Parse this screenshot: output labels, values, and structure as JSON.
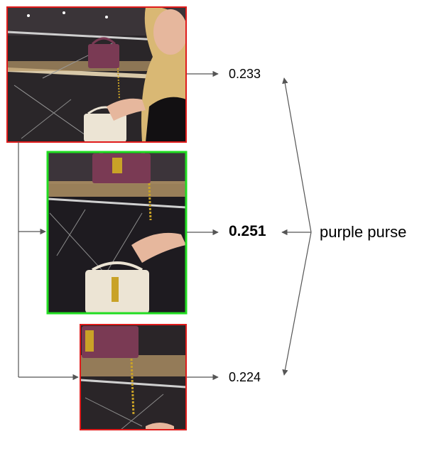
{
  "query_text": "purple purse",
  "crops": [
    {
      "id": "crop-1",
      "score": "0.233",
      "selected": false
    },
    {
      "id": "crop-2",
      "score": "0.251",
      "selected": true
    },
    {
      "id": "crop-3",
      "score": "0.224",
      "selected": false
    }
  ],
  "colors": {
    "selected_border": "#22dd22",
    "rejected_border": "#e01b1b",
    "arrow": "#555555",
    "purse": "#7a3a54",
    "white_bag": "#ece4d4",
    "gold": "#c9a227",
    "skin": "#e6b79d",
    "hair": "#d9b874",
    "dark_bg": "#1e1b20"
  }
}
